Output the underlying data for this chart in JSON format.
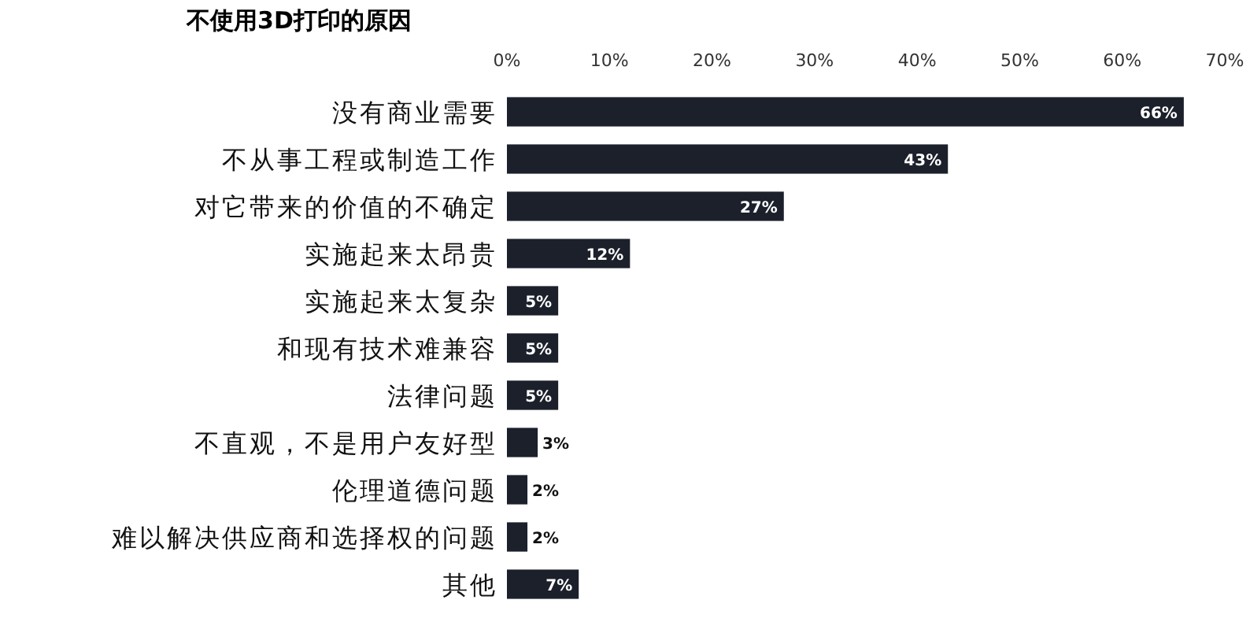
{
  "chart_data": {
    "type": "bar",
    "orientation": "horizontal",
    "title": "不使用3D打印的原因",
    "categories": [
      "没有商业需要",
      "不从事工程或制造工作",
      "对它带来的价值的不确定",
      "实施起来太昂贵",
      "实施起来太复杂",
      "和现有技术难兼容",
      "法律问题",
      "不直观，不是用户友好型",
      "伦理道德问题",
      "难以解决供应商和选择权的问题",
      "其他"
    ],
    "values": [
      66,
      43,
      27,
      12,
      5,
      5,
      5,
      3,
      2,
      2,
      7
    ],
    "value_labels": [
      "66%",
      "43%",
      "27%",
      "12%",
      "5%",
      "5%",
      "5%",
      "3%",
      "2%",
      "2%",
      "7%"
    ],
    "color": "#1b202b",
    "xlim": [
      0,
      70
    ],
    "xticks": [
      {
        "value": 0,
        "label": "0%"
      },
      {
        "value": 10,
        "label": "10%"
      },
      {
        "value": 20,
        "label": "20%"
      },
      {
        "value": 30,
        "label": "30%"
      },
      {
        "value": 40,
        "label": "40%"
      },
      {
        "value": 50,
        "label": "50%"
      },
      {
        "value": 60,
        "label": "60%"
      },
      {
        "value": 70,
        "label": "70%"
      }
    ],
    "grid": false
  }
}
